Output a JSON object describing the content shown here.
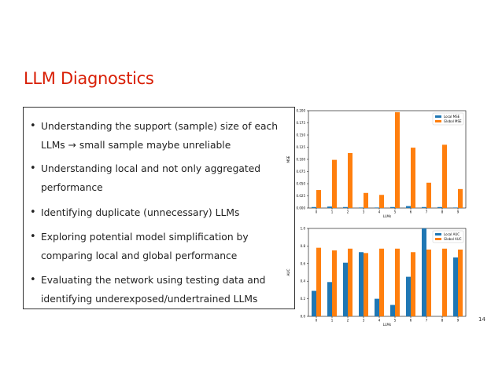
{
  "slide": {
    "title": "LLM Diagnostics",
    "bullets": [
      {
        "text": "Understanding the support (sample) size of each LLMs → small sample maybe unreliable"
      },
      {
        "text": "Understanding local and not only aggregated performance"
      },
      {
        "text": "Identifying duplicate (unnecessary) LLMs"
      },
      {
        "text": "Exploring potential model simplification by comparing local and global performance"
      },
      {
        "text": "Evaluating the network using testing data and identifying underexposed/undertrained LLMs"
      }
    ],
    "page_number": "14"
  },
  "colors": {
    "title": "#d81e05",
    "local": "#1f77b4",
    "global": "#ff7f0e"
  },
  "chart_data": [
    {
      "type": "bar",
      "categories": [
        "0",
        "1",
        "2",
        "3",
        "4",
        "5",
        "6",
        "7",
        "8",
        "9"
      ],
      "xlabel": "LLMs",
      "ylabel": "MSE",
      "ylim": [
        0,
        0.2
      ],
      "yticks": [
        0.0,
        0.025,
        0.05,
        0.075,
        0.1,
        0.125,
        0.15,
        0.175,
        0.2
      ],
      "ytick_labels": [
        "0.000",
        "0.025",
        "0.050",
        "0.075",
        "0.100",
        "0.125",
        "0.150",
        "0.175",
        "0.200"
      ],
      "legend": "top-right",
      "series": [
        {
          "name": "Local MSE",
          "values": [
            0.002,
            0.003,
            0.002,
            0.001,
            0.001,
            0.002,
            0.004,
            0.002,
            0.002,
            0.001
          ]
        },
        {
          "name": "Global MSE",
          "values": [
            0.037,
            0.099,
            0.113,
            0.031,
            0.027,
            0.197,
            0.124,
            0.052,
            0.13,
            0.039
          ]
        }
      ]
    },
    {
      "type": "bar",
      "categories": [
        "0",
        "1",
        "2",
        "3",
        "4",
        "5",
        "6",
        "7",
        "8",
        "9"
      ],
      "xlabel": "LLMs",
      "ylabel": "AUC",
      "ylim": [
        0,
        1.0
      ],
      "yticks": [
        0.0,
        0.2,
        0.4,
        0.6,
        0.8,
        1.0
      ],
      "ytick_labels": [
        "0.0",
        "0.2",
        "0.4",
        "0.6",
        "0.8",
        "1.0"
      ],
      "legend": "top-right",
      "series": [
        {
          "name": "Local AUC",
          "values": [
            0.29,
            0.39,
            0.61,
            0.73,
            0.2,
            0.13,
            0.45,
            1.0,
            0.0,
            0.67
          ]
        },
        {
          "name": "Global AUC",
          "values": [
            0.78,
            0.75,
            0.77,
            0.72,
            0.77,
            0.77,
            0.73,
            0.76,
            0.77,
            0.76
          ]
        }
      ]
    }
  ]
}
